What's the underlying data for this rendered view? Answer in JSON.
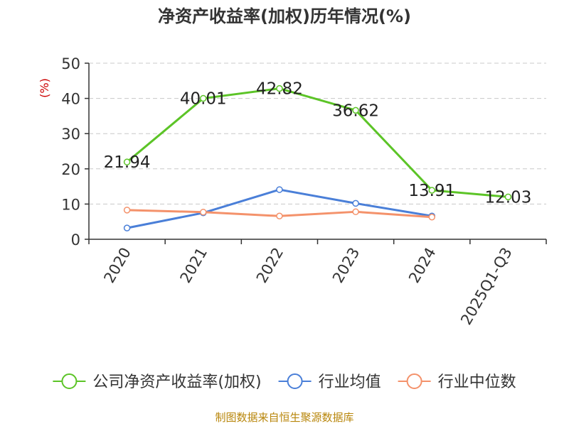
{
  "chart_data": {
    "type": "line",
    "title": "净资产收益率(加权)历年情况(%)",
    "ylabel": "(%)",
    "xlabel": "",
    "categories": [
      "2020",
      "2021",
      "2022",
      "2023",
      "2024",
      "2025Q1-Q3"
    ],
    "ylim": [
      0,
      50
    ],
    "yticks": [
      0,
      10,
      20,
      30,
      40,
      50
    ],
    "grid": true,
    "legend_position": "bottom",
    "series": [
      {
        "name": "公司净资产收益率(加权)",
        "color": "#5cc427",
        "values": [
          21.94,
          40.01,
          42.82,
          36.62,
          13.91,
          12.03
        ],
        "labels": [
          "21.94",
          "40.01",
          "42.82",
          "36.62",
          "13.91",
          "12.03"
        ]
      },
      {
        "name": "行业均值",
        "color": "#4a7fd8",
        "values": [
          3.2,
          7.5,
          14.1,
          10.2,
          6.6,
          null
        ]
      },
      {
        "name": "行业中位数",
        "color": "#f4926b",
        "values": [
          8.3,
          7.7,
          6.6,
          7.8,
          6.3,
          null
        ]
      }
    ]
  },
  "source": "制图数据来自恒生聚源数据库"
}
